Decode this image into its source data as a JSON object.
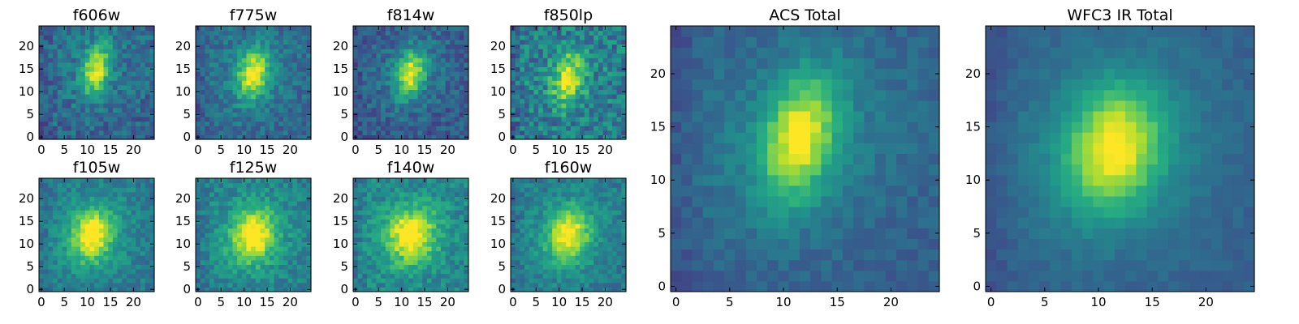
{
  "chart_data": {
    "type": "heatmap",
    "colormap": "viridis",
    "grid_size": [
      25,
      25
    ],
    "panels": [
      {
        "title": "f606w",
        "xticks": [
          "0",
          "5",
          "10",
          "15",
          "20"
        ],
        "yticks": [
          "0",
          "5",
          "10",
          "15",
          "20"
        ],
        "peak": [
          12,
          15
        ],
        "sigma": [
          2.0,
          3.8
        ],
        "amp": 0.95,
        "bg": 0.32,
        "halo": 0.1,
        "noise": 0.13,
        "tilt": 0.15,
        "seed": 11
      },
      {
        "title": "f775w",
        "xticks": [
          "0",
          "5",
          "10",
          "15",
          "20"
        ],
        "yticks": [
          "0",
          "5",
          "10",
          "15",
          "20"
        ],
        "peak": [
          12,
          14
        ],
        "sigma": [
          2.3,
          3.8
        ],
        "amp": 0.95,
        "bg": 0.33,
        "halo": 0.12,
        "noise": 0.11,
        "tilt": 0.12,
        "seed": 23
      },
      {
        "title": "f814w",
        "xticks": [
          "0",
          "5",
          "10",
          "15",
          "20"
        ],
        "yticks": [
          "0",
          "5",
          "10",
          "15",
          "20"
        ],
        "peak": [
          12,
          14
        ],
        "sigma": [
          2.1,
          3.6
        ],
        "amp": 0.95,
        "bg": 0.28,
        "halo": 0.12,
        "noise": 0.12,
        "tilt": 0.15,
        "seed": 37
      },
      {
        "title": "f850lp",
        "xticks": [
          "0",
          "5",
          "10",
          "15",
          "20"
        ],
        "yticks": [
          "0",
          "5",
          "10",
          "15",
          "20"
        ],
        "peak": [
          12,
          13
        ],
        "sigma": [
          2.2,
          3.8
        ],
        "amp": 0.9,
        "bg": 0.4,
        "halo": 0.08,
        "noise": 0.18,
        "tilt": 0.1,
        "seed": 41
      },
      {
        "title": "f105w",
        "xticks": [
          "0",
          "5",
          "10",
          "15",
          "20"
        ],
        "yticks": [
          "0",
          "5",
          "10",
          "15",
          "20"
        ],
        "peak": [
          11,
          12
        ],
        "sigma": [
          2.8,
          3.8
        ],
        "amp": 0.9,
        "bg": 0.4,
        "halo": 0.16,
        "noise": 0.1,
        "tilt": 0.1,
        "seed": 53
      },
      {
        "title": "f125w",
        "xticks": [
          "0",
          "5",
          "10",
          "15",
          "20"
        ],
        "yticks": [
          "0",
          "5",
          "10",
          "15",
          "20"
        ],
        "peak": [
          12,
          12
        ],
        "sigma": [
          3.0,
          3.8
        ],
        "amp": 0.9,
        "bg": 0.42,
        "halo": 0.16,
        "noise": 0.11,
        "tilt": 0.08,
        "seed": 67
      },
      {
        "title": "f140w",
        "xticks": [
          "0",
          "5",
          "10",
          "15",
          "20"
        ],
        "yticks": [
          "0",
          "5",
          "10",
          "15",
          "20"
        ],
        "peak": [
          12,
          12
        ],
        "sigma": [
          3.3,
          3.8
        ],
        "amp": 0.85,
        "bg": 0.44,
        "halo": 0.16,
        "noise": 0.12,
        "tilt": 0.06,
        "seed": 71
      },
      {
        "title": "f160w",
        "xticks": [
          "0",
          "5",
          "10",
          "15",
          "20"
        ],
        "yticks": [
          "0",
          "5",
          "10",
          "15",
          "20"
        ],
        "peak": [
          12,
          12
        ],
        "sigma": [
          2.8,
          3.8
        ],
        "amp": 0.85,
        "bg": 0.4,
        "halo": 0.16,
        "noise": 0.1,
        "tilt": 0.08,
        "seed": 83
      },
      {
        "title": "ACS Total",
        "xticks": [
          "0",
          "5",
          "10",
          "15",
          "20"
        ],
        "yticks": [
          "0",
          "5",
          "10",
          "15",
          "20"
        ],
        "peak": [
          11.5,
          14
        ],
        "sigma": [
          2.2,
          4.0
        ],
        "amp": 0.95,
        "bg": 0.3,
        "halo": 0.16,
        "noise": 0.06,
        "tilt": 0.18,
        "seed": 97
      },
      {
        "title": "WFC3 IR Total",
        "xticks": [
          "0",
          "5",
          "10",
          "15",
          "20"
        ],
        "yticks": [
          "0",
          "5",
          "10",
          "15",
          "20"
        ],
        "peak": [
          11.5,
          13
        ],
        "sigma": [
          2.9,
          3.9
        ],
        "amp": 0.95,
        "bg": 0.3,
        "halo": 0.18,
        "noise": 0.04,
        "tilt": 0.1,
        "seed": 101
      }
    ]
  }
}
